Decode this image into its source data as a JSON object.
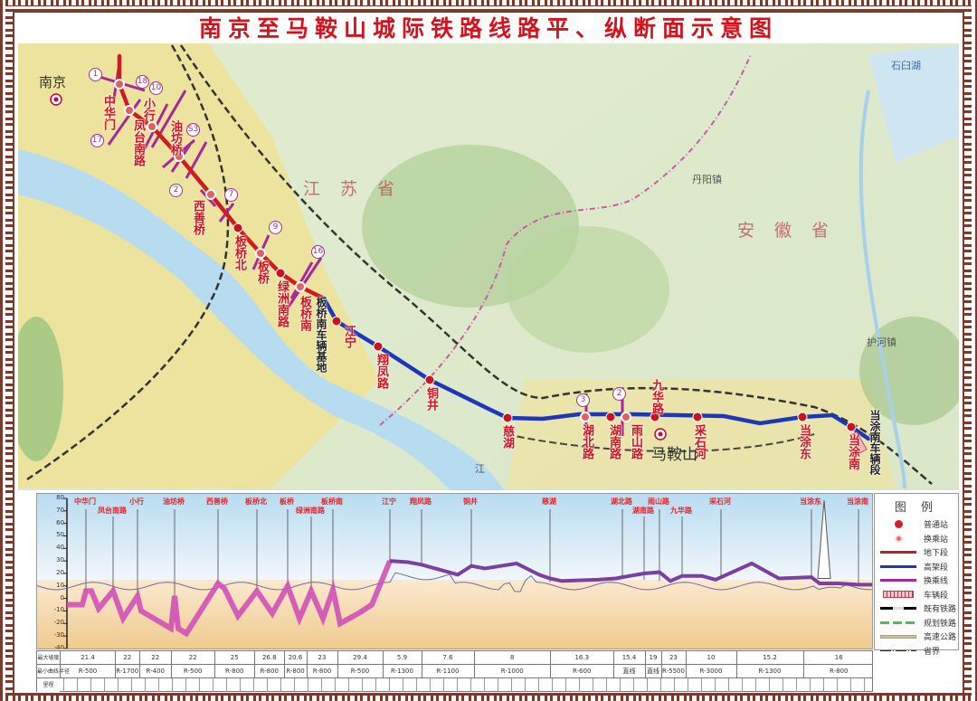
{
  "title": "南京至马鞍山城际铁路线路平、纵断面示意图",
  "colors": {
    "underground": "#d01a22",
    "elevated": "#1f36b8",
    "transfer": "#a8279c",
    "title": "#d5121b",
    "frame": "#7a3b2e"
  },
  "map": {
    "cities": {
      "nanjing": "南京",
      "maanshan": "马鞍山"
    },
    "provinces": [
      "江苏省",
      "安徽省"
    ],
    "towns": [
      "丹阳镇",
      "护河镇",
      "石臼湖",
      "江"
    ],
    "depots": [
      "板桥南车辆基地",
      "当涂南车辆段"
    ],
    "stations": [
      {
        "name": "中华门",
        "section": "underground",
        "transfer": true
      },
      {
        "name": "凤台南路",
        "section": "underground",
        "transfer": true
      },
      {
        "name": "小行",
        "section": "underground",
        "transfer": true
      },
      {
        "name": "油坊桥",
        "section": "underground",
        "transfer": true
      },
      {
        "name": "西善桥",
        "section": "underground",
        "transfer": true
      },
      {
        "name": "板桥北",
        "section": "underground",
        "transfer": false
      },
      {
        "name": "板桥",
        "section": "underground",
        "transfer": true
      },
      {
        "name": "绿洲南路",
        "section": "underground",
        "transfer": false
      },
      {
        "name": "板桥南",
        "section": "underground",
        "transfer": true
      },
      {
        "name": "江宁",
        "section": "elevated",
        "transfer": false
      },
      {
        "name": "翔凤路",
        "section": "elevated",
        "transfer": false
      },
      {
        "name": "铜井",
        "section": "elevated",
        "transfer": false
      },
      {
        "name": "慈湖",
        "section": "elevated",
        "transfer": false
      },
      {
        "name": "湖北路",
        "section": "elevated",
        "transfer": true
      },
      {
        "name": "湖南路",
        "section": "elevated",
        "transfer": false
      },
      {
        "name": "雨山路",
        "section": "elevated",
        "transfer": true
      },
      {
        "name": "九华路",
        "section": "elevated",
        "transfer": false
      },
      {
        "name": "采石河",
        "section": "elevated",
        "transfer": false
      },
      {
        "name": "当涂东",
        "section": "elevated",
        "transfer": false
      },
      {
        "name": "当涂南",
        "section": "elevated",
        "transfer": false
      }
    ],
    "transfer_lines": [
      "1",
      "18",
      "10",
      "17",
      "S3",
      "2",
      "7",
      "9",
      "16",
      "3",
      "2"
    ]
  },
  "profile": {
    "y_ticks": [
      "80",
      "70",
      "60",
      "50",
      "40",
      "30",
      "20",
      "10",
      "0",
      "-10",
      "-20",
      "-30",
      "-40"
    ],
    "stations": [
      "中华门",
      "凤台南路",
      "小行",
      "油坊桥",
      "西善桥",
      "板桥北",
      "板桥",
      "绿洲南路",
      "板桥南",
      "江宁",
      "翔凤路",
      "铜井",
      "慈湖",
      "湖北路",
      "湖南路",
      "雨山路",
      "九华路",
      "采石河",
      "当涂东",
      "当涂南"
    ]
  },
  "legend": {
    "title": "图 例",
    "items": [
      "普通站",
      "换乘站",
      "地下段",
      "高架段",
      "换乘线",
      "车辆段",
      "既有铁路",
      "规划铁路",
      "高速公路",
      "省界"
    ]
  },
  "table": {
    "row_labels": [
      "最大坡度",
      "最小曲线半径",
      "里程"
    ],
    "max_grade": [
      "21.4",
      "22",
      "22",
      "22",
      "25",
      "26.8",
      "20.6",
      "23",
      "29.4",
      "5.9",
      "7.6",
      "8",
      "16.3",
      "15.4",
      "19",
      "23",
      "10",
      "15.2",
      "16"
    ],
    "min_radius": [
      "R-500",
      "R-1700",
      "R-400",
      "R-500",
      "R-800",
      "R-800",
      "R-800",
      "R-800",
      "R-500",
      "R-1300",
      "R-1100",
      "R-1000",
      "R-600",
      "直线",
      "直线",
      "R-5500",
      "R-3000",
      "R-1300",
      "R-800"
    ]
  }
}
